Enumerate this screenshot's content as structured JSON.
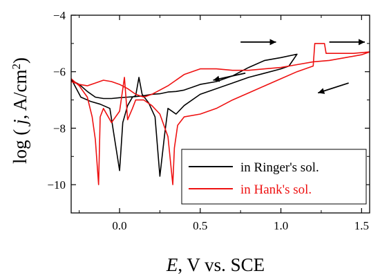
{
  "chart_data": {
    "type": "line",
    "title": "",
    "xlabel": {
      "italic": "E",
      "rest": ", V vs. SCE"
    },
    "ylabel": {
      "prefix": "log ( ",
      "italic": "j",
      "middle": ", A/cm",
      "sup": "2",
      "suffix": ")"
    },
    "xlim": [
      -0.3,
      1.55
    ],
    "ylim": [
      -11,
      -4
    ],
    "xticks": [
      {
        "value": 0.0,
        "label": "0.0"
      },
      {
        "value": 0.5,
        "label": "0.5"
      },
      {
        "value": 1.0,
        "label": "1.0"
      },
      {
        "value": 1.5,
        "label": "1.5"
      }
    ],
    "yticks": [
      {
        "value": -4,
        "label": "−4"
      },
      {
        "value": -6,
        "label": "−6"
      },
      {
        "value": -8,
        "label": "−8"
      },
      {
        "value": -10,
        "label": "−10"
      }
    ],
    "legend": {
      "placement": "lower-right"
    },
    "series": [
      {
        "name": "in Ringer's sol.",
        "color": "#000000",
        "x": [
          -0.3,
          -0.24,
          -0.18,
          -0.12,
          -0.06,
          -0.03,
          0.0,
          0.02,
          0.05,
          0.08,
          0.1,
          0.12,
          0.14,
          0.18,
          0.22,
          0.25,
          0.28,
          0.3,
          0.35,
          0.4,
          0.5,
          0.6,
          0.7,
          0.8,
          0.9,
          1.0,
          1.05,
          1.1,
          1.0,
          0.9,
          0.8,
          0.7,
          0.6,
          0.5,
          0.45,
          0.4,
          0.35,
          0.3,
          0.25,
          0.2,
          0.15,
          0.1,
          0.05,
          0.0,
          -0.05,
          -0.1,
          -0.15,
          -0.2,
          -0.25,
          -0.3
        ],
        "y": [
          -6.25,
          -6.9,
          -7.05,
          -7.15,
          -7.3,
          -8.4,
          -9.5,
          -7.8,
          -7.2,
          -6.9,
          -6.85,
          -6.2,
          -6.8,
          -7.1,
          -7.6,
          -9.7,
          -8.2,
          -7.3,
          -7.5,
          -7.2,
          -6.8,
          -6.6,
          -6.4,
          -6.2,
          -6.05,
          -5.9,
          -5.8,
          -5.38,
          -5.5,
          -5.6,
          -5.85,
          -6.15,
          -6.35,
          -6.45,
          -6.55,
          -6.65,
          -6.7,
          -6.72,
          -6.78,
          -6.8,
          -6.85,
          -6.88,
          -6.9,
          -6.92,
          -6.95,
          -6.95,
          -6.9,
          -6.7,
          -6.45,
          -6.3
        ]
      },
      {
        "name": "in Hank's sol.",
        "color": "#ee1111",
        "x": [
          -0.3,
          -0.25,
          -0.2,
          -0.17,
          -0.15,
          -0.13,
          -0.12,
          -0.1,
          -0.05,
          0.0,
          0.03,
          0.05,
          0.08,
          0.1,
          0.15,
          0.2,
          0.25,
          0.3,
          0.33,
          0.34,
          0.36,
          0.4,
          0.5,
          0.6,
          0.7,
          0.8,
          0.9,
          1.0,
          1.1,
          1.2,
          1.21,
          1.27,
          1.28,
          1.35,
          1.45,
          1.55,
          1.5,
          1.4,
          1.3,
          1.2,
          1.1,
          1.0,
          0.9,
          0.8,
          0.7,
          0.6,
          0.5,
          0.4,
          0.3,
          0.2,
          0.15,
          0.1,
          0.05,
          0.0,
          -0.05,
          -0.1,
          -0.15,
          -0.2,
          -0.25,
          -0.3
        ],
        "y": [
          -6.25,
          -6.5,
          -6.9,
          -7.6,
          -8.4,
          -10.0,
          -7.6,
          -7.3,
          -7.8,
          -7.4,
          -6.2,
          -7.7,
          -7.3,
          -7.0,
          -7.0,
          -7.2,
          -7.5,
          -8.3,
          -10.0,
          -8.7,
          -7.9,
          -7.6,
          -7.5,
          -7.3,
          -7.0,
          -6.75,
          -6.5,
          -6.25,
          -6.0,
          -5.8,
          -5.0,
          -5.0,
          -5.35,
          -5.35,
          -5.35,
          -5.3,
          -5.4,
          -5.5,
          -5.6,
          -5.65,
          -5.75,
          -5.85,
          -5.9,
          -5.95,
          -5.95,
          -5.9,
          -5.9,
          -6.1,
          -6.5,
          -6.8,
          -6.9,
          -6.8,
          -6.6,
          -6.45,
          -6.35,
          -6.3,
          -6.4,
          -6.5,
          -6.45,
          -6.35
        ]
      }
    ],
    "annotations": [
      {
        "type": "arrow",
        "direction": "right",
        "from": [
          0.75,
          -4.95
        ],
        "to": [
          0.97,
          -4.95
        ],
        "color": "#000000"
      },
      {
        "type": "arrow",
        "direction": "left",
        "from": [
          0.78,
          -6.05
        ],
        "to": [
          0.58,
          -6.3
        ],
        "color": "#000000"
      },
      {
        "type": "arrow",
        "direction": "right",
        "from": [
          1.3,
          -4.95
        ],
        "to": [
          1.52,
          -4.95
        ],
        "color": "#000000"
      },
      {
        "type": "arrow",
        "direction": "left",
        "from": [
          1.42,
          -6.4
        ],
        "to": [
          1.23,
          -6.75
        ],
        "color": "#000000"
      }
    ]
  }
}
